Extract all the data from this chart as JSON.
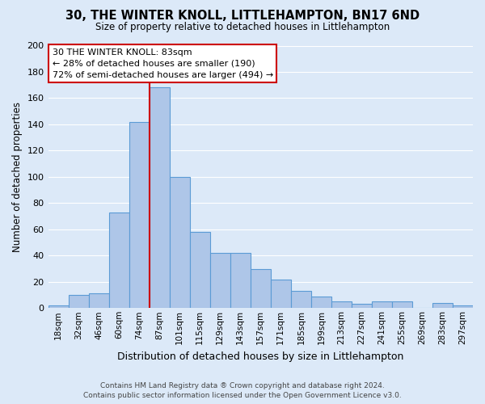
{
  "title": "30, THE WINTER KNOLL, LITTLEHAMPTON, BN17 6ND",
  "subtitle": "Size of property relative to detached houses in Littlehampton",
  "xlabel": "Distribution of detached houses by size in Littlehampton",
  "ylabel": "Number of detached properties",
  "footnote1": "Contains HM Land Registry data ® Crown copyright and database right 2024.",
  "footnote2": "Contains public sector information licensed under the Open Government Licence v3.0.",
  "categories": [
    "18sqm",
    "32sqm",
    "46sqm",
    "60sqm",
    "74sqm",
    "87sqm",
    "101sqm",
    "115sqm",
    "129sqm",
    "143sqm",
    "157sqm",
    "171sqm",
    "185sqm",
    "199sqm",
    "213sqm",
    "227sqm",
    "241sqm",
    "255sqm",
    "269sqm",
    "283sqm",
    "297sqm"
  ],
  "values": [
    2,
    10,
    11,
    73,
    142,
    168,
    100,
    58,
    42,
    42,
    30,
    22,
    13,
    9,
    5,
    3,
    5,
    5,
    0,
    4,
    2
  ],
  "bar_color": "#aec6e8",
  "bar_edge_color": "#5b9bd5",
  "bg_color": "#dce9f8",
  "grid_color": "#ffffff",
  "vline_x": 4.5,
  "vline_color": "#cc0000",
  "annotation_line1": "30 THE WINTER KNOLL: 83sqm",
  "annotation_line2": "← 28% of detached houses are smaller (190)",
  "annotation_line3": "72% of semi-detached houses are larger (494) →",
  "annotation_box_color": "#ffffff",
  "annotation_box_edge": "#cc0000",
  "ylim": [
    0,
    200
  ],
  "yticks": [
    0,
    20,
    40,
    60,
    80,
    100,
    120,
    140,
    160,
    180,
    200
  ]
}
